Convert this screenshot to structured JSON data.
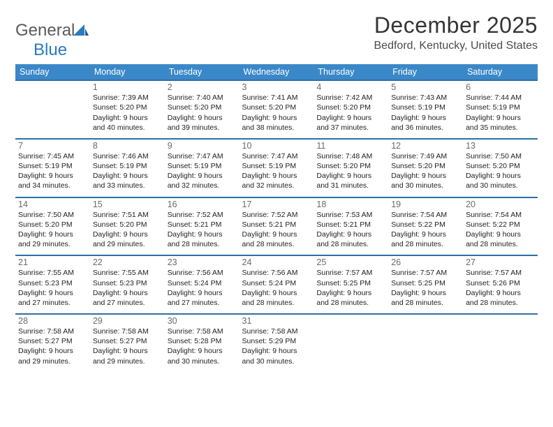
{
  "logo": {
    "text1": "General",
    "text2": "Blue"
  },
  "title": "December 2025",
  "location": "Bedford, Kentucky, United States",
  "colors": {
    "header_bg": "#3a88c8",
    "row_border": "#2e6fa8",
    "title_color": "#353535",
    "text_color": "#222222",
    "daynum_color": "#6b6b6b"
  },
  "weekdays": [
    "Sunday",
    "Monday",
    "Tuesday",
    "Wednesday",
    "Thursday",
    "Friday",
    "Saturday"
  ],
  "weeks": [
    [
      {
        "n": "",
        "sr": "",
        "ss": "",
        "dl": ""
      },
      {
        "n": "1",
        "sr": "Sunrise: 7:39 AM",
        "ss": "Sunset: 5:20 PM",
        "dl": "Daylight: 9 hours and 40 minutes."
      },
      {
        "n": "2",
        "sr": "Sunrise: 7:40 AM",
        "ss": "Sunset: 5:20 PM",
        "dl": "Daylight: 9 hours and 39 minutes."
      },
      {
        "n": "3",
        "sr": "Sunrise: 7:41 AM",
        "ss": "Sunset: 5:20 PM",
        "dl": "Daylight: 9 hours and 38 minutes."
      },
      {
        "n": "4",
        "sr": "Sunrise: 7:42 AM",
        "ss": "Sunset: 5:20 PM",
        "dl": "Daylight: 9 hours and 37 minutes."
      },
      {
        "n": "5",
        "sr": "Sunrise: 7:43 AM",
        "ss": "Sunset: 5:19 PM",
        "dl": "Daylight: 9 hours and 36 minutes."
      },
      {
        "n": "6",
        "sr": "Sunrise: 7:44 AM",
        "ss": "Sunset: 5:19 PM",
        "dl": "Daylight: 9 hours and 35 minutes."
      }
    ],
    [
      {
        "n": "7",
        "sr": "Sunrise: 7:45 AM",
        "ss": "Sunset: 5:19 PM",
        "dl": "Daylight: 9 hours and 34 minutes."
      },
      {
        "n": "8",
        "sr": "Sunrise: 7:46 AM",
        "ss": "Sunset: 5:19 PM",
        "dl": "Daylight: 9 hours and 33 minutes."
      },
      {
        "n": "9",
        "sr": "Sunrise: 7:47 AM",
        "ss": "Sunset: 5:19 PM",
        "dl": "Daylight: 9 hours and 32 minutes."
      },
      {
        "n": "10",
        "sr": "Sunrise: 7:47 AM",
        "ss": "Sunset: 5:19 PM",
        "dl": "Daylight: 9 hours and 32 minutes."
      },
      {
        "n": "11",
        "sr": "Sunrise: 7:48 AM",
        "ss": "Sunset: 5:20 PM",
        "dl": "Daylight: 9 hours and 31 minutes."
      },
      {
        "n": "12",
        "sr": "Sunrise: 7:49 AM",
        "ss": "Sunset: 5:20 PM",
        "dl": "Daylight: 9 hours and 30 minutes."
      },
      {
        "n": "13",
        "sr": "Sunrise: 7:50 AM",
        "ss": "Sunset: 5:20 PM",
        "dl": "Daylight: 9 hours and 30 minutes."
      }
    ],
    [
      {
        "n": "14",
        "sr": "Sunrise: 7:50 AM",
        "ss": "Sunset: 5:20 PM",
        "dl": "Daylight: 9 hours and 29 minutes."
      },
      {
        "n": "15",
        "sr": "Sunrise: 7:51 AM",
        "ss": "Sunset: 5:20 PM",
        "dl": "Daylight: 9 hours and 29 minutes."
      },
      {
        "n": "16",
        "sr": "Sunrise: 7:52 AM",
        "ss": "Sunset: 5:21 PM",
        "dl": "Daylight: 9 hours and 28 minutes."
      },
      {
        "n": "17",
        "sr": "Sunrise: 7:52 AM",
        "ss": "Sunset: 5:21 PM",
        "dl": "Daylight: 9 hours and 28 minutes."
      },
      {
        "n": "18",
        "sr": "Sunrise: 7:53 AM",
        "ss": "Sunset: 5:21 PM",
        "dl": "Daylight: 9 hours and 28 minutes."
      },
      {
        "n": "19",
        "sr": "Sunrise: 7:54 AM",
        "ss": "Sunset: 5:22 PM",
        "dl": "Daylight: 9 hours and 28 minutes."
      },
      {
        "n": "20",
        "sr": "Sunrise: 7:54 AM",
        "ss": "Sunset: 5:22 PM",
        "dl": "Daylight: 9 hours and 28 minutes."
      }
    ],
    [
      {
        "n": "21",
        "sr": "Sunrise: 7:55 AM",
        "ss": "Sunset: 5:23 PM",
        "dl": "Daylight: 9 hours and 27 minutes."
      },
      {
        "n": "22",
        "sr": "Sunrise: 7:55 AM",
        "ss": "Sunset: 5:23 PM",
        "dl": "Daylight: 9 hours and 27 minutes."
      },
      {
        "n": "23",
        "sr": "Sunrise: 7:56 AM",
        "ss": "Sunset: 5:24 PM",
        "dl": "Daylight: 9 hours and 27 minutes."
      },
      {
        "n": "24",
        "sr": "Sunrise: 7:56 AM",
        "ss": "Sunset: 5:24 PM",
        "dl": "Daylight: 9 hours and 28 minutes."
      },
      {
        "n": "25",
        "sr": "Sunrise: 7:57 AM",
        "ss": "Sunset: 5:25 PM",
        "dl": "Daylight: 9 hours and 28 minutes."
      },
      {
        "n": "26",
        "sr": "Sunrise: 7:57 AM",
        "ss": "Sunset: 5:25 PM",
        "dl": "Daylight: 9 hours and 28 minutes."
      },
      {
        "n": "27",
        "sr": "Sunrise: 7:57 AM",
        "ss": "Sunset: 5:26 PM",
        "dl": "Daylight: 9 hours and 28 minutes."
      }
    ],
    [
      {
        "n": "28",
        "sr": "Sunrise: 7:58 AM",
        "ss": "Sunset: 5:27 PM",
        "dl": "Daylight: 9 hours and 29 minutes."
      },
      {
        "n": "29",
        "sr": "Sunrise: 7:58 AM",
        "ss": "Sunset: 5:27 PM",
        "dl": "Daylight: 9 hours and 29 minutes."
      },
      {
        "n": "30",
        "sr": "Sunrise: 7:58 AM",
        "ss": "Sunset: 5:28 PM",
        "dl": "Daylight: 9 hours and 30 minutes."
      },
      {
        "n": "31",
        "sr": "Sunrise: 7:58 AM",
        "ss": "Sunset: 5:29 PM",
        "dl": "Daylight: 9 hours and 30 minutes."
      },
      {
        "n": "",
        "sr": "",
        "ss": "",
        "dl": ""
      },
      {
        "n": "",
        "sr": "",
        "ss": "",
        "dl": ""
      },
      {
        "n": "",
        "sr": "",
        "ss": "",
        "dl": ""
      }
    ]
  ]
}
